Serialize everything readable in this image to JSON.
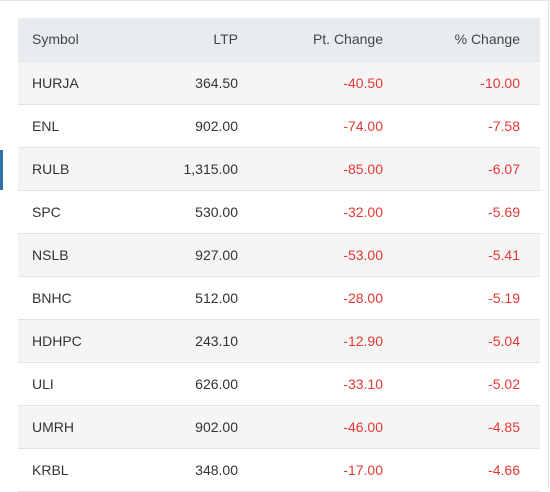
{
  "table": {
    "header": [
      "Symbol",
      "LTP",
      "Pt. Change",
      "% Change"
    ],
    "rows": [
      [
        "HURJA",
        "364.50",
        "-40.50",
        "-10.00"
      ],
      [
        "ENL",
        "902.00",
        "-74.00",
        "-7.58"
      ],
      [
        "RULB",
        "1,315.00",
        "-85.00",
        "-6.07"
      ],
      [
        "SPC",
        "530.00",
        "-32.00",
        "-5.69"
      ],
      [
        "NSLB",
        "927.00",
        "-53.00",
        "-5.41"
      ],
      [
        "BNHC",
        "512.00",
        "-28.00",
        "-5.19"
      ],
      [
        "HDHPC",
        "243.10",
        "-12.90",
        "-5.04"
      ],
      [
        "ULI",
        "626.00",
        "-33.10",
        "-5.02"
      ],
      [
        "UMRH",
        "902.00",
        "-46.00",
        "-4.85"
      ],
      [
        "KRBL",
        "348.00",
        "-17.00",
        "-4.66"
      ]
    ]
  }
}
